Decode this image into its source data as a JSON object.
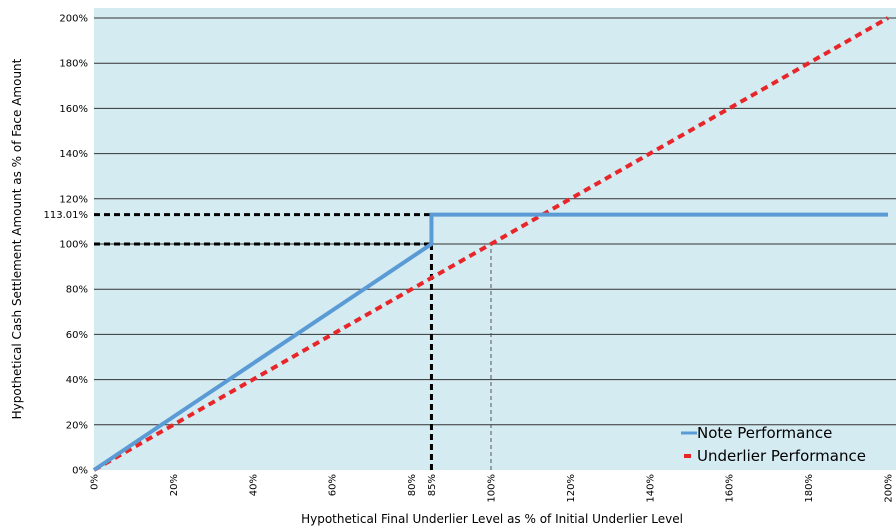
{
  "chart_data": {
    "type": "line",
    "xlabel": "Hypothetical Final Underlier Level as % of Initial Underlier Level",
    "ylabel": "Hypothetical Cash Settlement Amount as % of Face Amount",
    "xlim": [
      0,
      200
    ],
    "ylim": [
      0,
      200
    ],
    "x_ticks": [
      "0%",
      "20%",
      "40%",
      "60%",
      "80%",
      "85%",
      "100%",
      "120%",
      "140%",
      "160%",
      "180%",
      "200%"
    ],
    "x_tick_values": [
      0,
      20,
      40,
      60,
      80,
      85,
      100,
      120,
      140,
      160,
      180,
      200
    ],
    "y_ticks": [
      "0%",
      "20%",
      "40%",
      "60%",
      "80%",
      "100%",
      "113.01%",
      "120%",
      "140%",
      "160%",
      "180%",
      "200%"
    ],
    "y_tick_values": [
      0,
      20,
      40,
      60,
      80,
      100,
      113.01,
      120,
      140,
      160,
      180,
      200
    ],
    "grid": "horizontal",
    "background": "#d4ebf2",
    "legend_position": "bottom-right",
    "series": [
      {
        "name": "Note Performance",
        "style": "solid",
        "color": "#5b9bd5",
        "x": [
          0,
          85,
          85,
          200
        ],
        "y": [
          0,
          100,
          113.01,
          113.01
        ]
      },
      {
        "name": "Underlier Performance",
        "style": "dotted",
        "color": "#e8262a",
        "x": [
          0,
          200
        ],
        "y": [
          0,
          200
        ]
      }
    ],
    "reference_lines": [
      {
        "style": "dashed-bold",
        "color": "#000000",
        "points": [
          [
            0,
            113.01
          ],
          [
            85,
            113.01
          ]
        ]
      },
      {
        "style": "dashed-bold",
        "color": "#000000",
        "points": [
          [
            0,
            100
          ],
          [
            85,
            100
          ]
        ]
      },
      {
        "style": "dashed-bold",
        "color": "#000000",
        "points": [
          [
            85,
            0
          ],
          [
            85,
            100
          ]
        ]
      },
      {
        "style": "dashed-thin",
        "color": "#555555",
        "points": [
          [
            100,
            0
          ],
          [
            100,
            100
          ]
        ]
      }
    ]
  }
}
